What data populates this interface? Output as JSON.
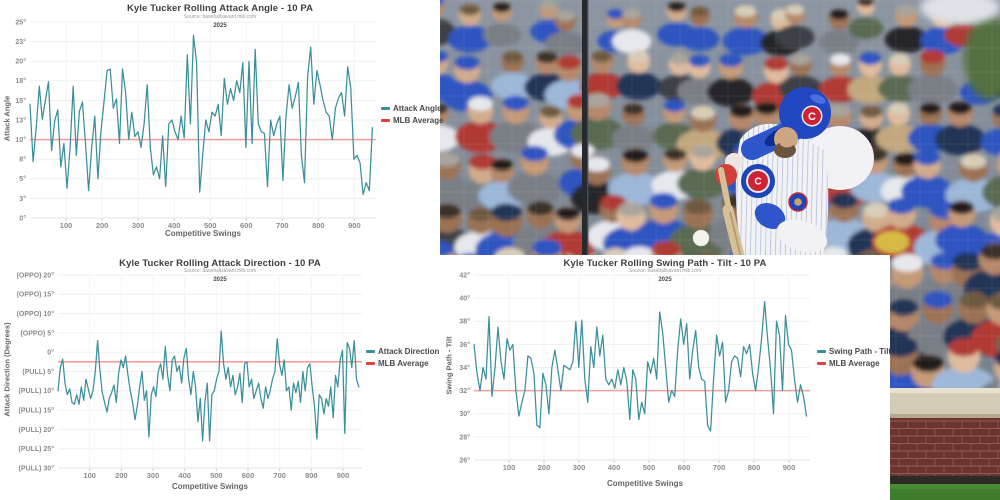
{
  "colors": {
    "series_teal": "#3b8f9b",
    "avg_line_red": "#f2a19c",
    "legend_red": "#e2403a",
    "grid": "#efefef",
    "grid_vertical": "#f5f5f5",
    "axis_baseline": "#e3e3e3",
    "tick_text": "#8c8c8c"
  },
  "chart_data": [
    {
      "type": "line",
      "title": "Kyle Tucker Rolling Attack Angle - 10 PA",
      "source": "Source: baseballsavant.mlb.com",
      "year": "2025",
      "xlabel": "Competitive Swings",
      "ylabel": "Attack Angle",
      "series_label": "Attack Angle",
      "avg_label": "MLB Average",
      "legend_position": "right",
      "ylim": [
        0,
        25
      ],
      "yticks": [
        {
          "v": 25,
          "label": "25°"
        },
        {
          "v": 22.5,
          "label": "23°"
        },
        {
          "v": 20,
          "label": "20°"
        },
        {
          "v": 17.5,
          "label": "18°"
        },
        {
          "v": 15,
          "label": "15°"
        },
        {
          "v": 12.5,
          "label": "13°"
        },
        {
          "v": 10,
          "label": "10°"
        },
        {
          "v": 7.5,
          "label": "8°"
        },
        {
          "v": 5,
          "label": "5°"
        },
        {
          "v": 2.5,
          "label": "3°"
        },
        {
          "v": 0,
          "label": "0°"
        }
      ],
      "xticks": [
        100,
        200,
        300,
        400,
        500,
        600,
        700,
        800,
        900
      ],
      "x_end": 950,
      "mlb_average": 10,
      "values": [
        14.5,
        7.2,
        11.5,
        16.8,
        12.6,
        15.0,
        17.4,
        8.6,
        12.4,
        13.8,
        6.5,
        9.5,
        3.8,
        9.0,
        16.8,
        8.0,
        13.6,
        14.8,
        9.5,
        3.5,
        9.0,
        13.0,
        5.0,
        11.0,
        14.8,
        18.8,
        19.0,
        14.0,
        15.2,
        9.5,
        19.0,
        16.0,
        10.0,
        13.5,
        10.4,
        11.0,
        9.0,
        12.0,
        17.0,
        9.0,
        5.5,
        6.5,
        5.0,
        10.5,
        4.0,
        12.0,
        12.5,
        11.0,
        10.0,
        13.0,
        10.2,
        20.8,
        12.0,
        23.3,
        19.8,
        3.3,
        8.0,
        12.5,
        11.0,
        13.5,
        13.0,
        14.5,
        10.5,
        17.8,
        14.5,
        16.5,
        15.0,
        17.5,
        16.0,
        19.8,
        9.0,
        20.0,
        9.5,
        21.5,
        12.0,
        11.0,
        10.8,
        4.0,
        12.5,
        10.5,
        12.0,
        13.0,
        4.8,
        13.0,
        17.0,
        14.0,
        15.5,
        17.3,
        8.0,
        4.5,
        18.0,
        21.8,
        14.5,
        18.8,
        17.0,
        15.0,
        13.5,
        13.0,
        10.0,
        14.0,
        15.3,
        16.0,
        13.0,
        19.3,
        16.5,
        7.5,
        8.0,
        7.0,
        3.0,
        4.5,
        3.5,
        11.5
      ]
    },
    {
      "type": "line",
      "title": "Kyle Tucker Rolling Attack Direction - 10 PA",
      "source": "Source: baseballsavant.mlb.com",
      "year": "2025",
      "xlabel": "Competitive Swings",
      "ylabel": "Attack Direction (Degrees)",
      "series_label": "Attack Direction",
      "avg_label": "MLB Average",
      "legend_position": "right",
      "ylim": [
        -30,
        20
      ],
      "yticks": [
        {
          "v": 20,
          "label": "(OPPO) 20°"
        },
        {
          "v": 15,
          "label": "(OPPO) 15°"
        },
        {
          "v": 10,
          "label": "(OPPO) 10°"
        },
        {
          "v": 5,
          "label": "(OPPO) 5°"
        },
        {
          "v": 0,
          "label": "0°"
        },
        {
          "v": -5,
          "label": "(PULL) 5°"
        },
        {
          "v": -10,
          "label": "(PULL) 10°"
        },
        {
          "v": -15,
          "label": "(PULL) 15°"
        },
        {
          "v": -20,
          "label": "(PULL) 20°"
        },
        {
          "v": -25,
          "label": "(PULL) 25°"
        },
        {
          "v": -30,
          "label": "(PULL) 30°"
        }
      ],
      "xticks": [
        100,
        200,
        300,
        400,
        500,
        600,
        700,
        800,
        900
      ],
      "x_end": 950,
      "mlb_average": -2.5,
      "values": [
        -10,
        -4,
        -1.8,
        -8,
        -11,
        -9.5,
        -13,
        -13.5,
        -11,
        -13.5,
        -9,
        -12.5,
        -7,
        -9.5,
        -12,
        -10,
        -5,
        3,
        -5,
        -10.5,
        -13,
        -15.5,
        -12,
        -10.5,
        -8.5,
        -13,
        -5.5,
        -2,
        -4,
        -1,
        -6,
        -10,
        -13,
        -17.5,
        -14,
        -9,
        -5,
        -12.5,
        -10,
        -22,
        -11,
        -9,
        -11.5,
        -5,
        -3,
        -7,
        1.5,
        -6,
        -10,
        -2,
        -1,
        -5,
        -3.5,
        -8,
        -1.5,
        1,
        -7,
        -11,
        -5,
        -9,
        -18,
        -12,
        -23,
        -13,
        -8,
        -23,
        -11,
        -10,
        -7,
        -5,
        5.5,
        -3,
        -7,
        -4,
        -9,
        -6,
        -11,
        -9,
        -5.5,
        -13,
        -3,
        -2.5,
        -9,
        -7,
        -12,
        -10,
        -8,
        -12,
        -14.5,
        -9,
        -12,
        -10,
        -7,
        -5,
        3.5,
        -3,
        -6,
        -2,
        -10,
        -9,
        -15,
        -8,
        -10.5,
        -7.5,
        -13,
        -5,
        -10,
        -4,
        -3,
        -9,
        -14,
        -22.5,
        -11,
        -12,
        -16,
        -12,
        -14,
        -9,
        -17,
        -6,
        -9,
        -2,
        0.5,
        -21,
        2.5,
        1,
        -4,
        3,
        -7,
        -9
      ]
    },
    {
      "type": "line",
      "title": "Kyle Tucker Rolling Swing Path - Tilt - 10 PA",
      "source": "Source: baseballsavant.mlb.com",
      "year": "2025",
      "xlabel": "Competitive Swings",
      "ylabel": "Swing Path - Tilt",
      "series_label": "Swing Path - Tilt",
      "avg_label": "MLB Average",
      "legend_position": "right",
      "ylim": [
        26,
        42
      ],
      "yticks": [
        {
          "v": 42,
          "label": "42°"
        },
        {
          "v": 40,
          "label": "40°"
        },
        {
          "v": 38,
          "label": "38°"
        },
        {
          "v": 36,
          "label": "36°"
        },
        {
          "v": 34,
          "label": "34°"
        },
        {
          "v": 32,
          "label": "32°"
        },
        {
          "v": 30,
          "label": "30°"
        },
        {
          "v": 28,
          "label": "28°"
        },
        {
          "v": 26,
          "label": "26°"
        }
      ],
      "xticks": [
        100,
        200,
        300,
        400,
        500,
        600,
        700,
        800,
        900
      ],
      "x_end": 950,
      "mlb_average": 32,
      "values": [
        36,
        33.5,
        32,
        34,
        33,
        38.4,
        31.5,
        34,
        37.5,
        34.5,
        33,
        36.5,
        35.5,
        36,
        32,
        29.8,
        31,
        32,
        35,
        34.8,
        33.5,
        29,
        28.8,
        33.5,
        32.5,
        30,
        34,
        35.5,
        33.8,
        32,
        34.2,
        34,
        33.8,
        34.5,
        38,
        34,
        38.1,
        33,
        31,
        35.8,
        34,
        37.5,
        35,
        36.8,
        33,
        32.5,
        33,
        32.2,
        33.8,
        32.5,
        34,
        32.8,
        29.5,
        33.8,
        33,
        29.5,
        31,
        30,
        34.5,
        33.5,
        34.8,
        33,
        38.8,
        37,
        34,
        31,
        32,
        31.5,
        35.5,
        38.2,
        36,
        37.8,
        33,
        35.5,
        37.2,
        34,
        33,
        32.8,
        29,
        28.5,
        33,
        36.8,
        35,
        36.2,
        31,
        32,
        34.5,
        35,
        34.8,
        33.2,
        35.8,
        35.2,
        36,
        33.5,
        32,
        34,
        36.5,
        39.7,
        36.5,
        33.8,
        30,
        38,
        36.8,
        32,
        38.5,
        36,
        35.5,
        33,
        31,
        32.5,
        31.5,
        29.8
      ]
    }
  ],
  "photo": {
    "type": "photograph",
    "subject_label": "Cubs batter mid-swing",
    "visible_logos": [
      "Cubs chest roundel",
      "red C helmet logo",
      "sleeve bear patch"
    ],
    "elements": [
      "blurred crowd",
      "protective netting",
      "dark screen pole",
      "white pinstriped uniform",
      "blue batting helmet",
      "bat",
      "baseball",
      "stone ledge",
      "brick wall",
      "green grass"
    ],
    "palette": {
      "cubs_blue": "#2148c0",
      "cubs_red": "#cc2434",
      "jersey_white": "#f2f2f4",
      "bat_wood": "#d6c097",
      "brick": "#6d3330",
      "grass": "#3e7c2e",
      "ledge": "#d4cbb7"
    }
  }
}
